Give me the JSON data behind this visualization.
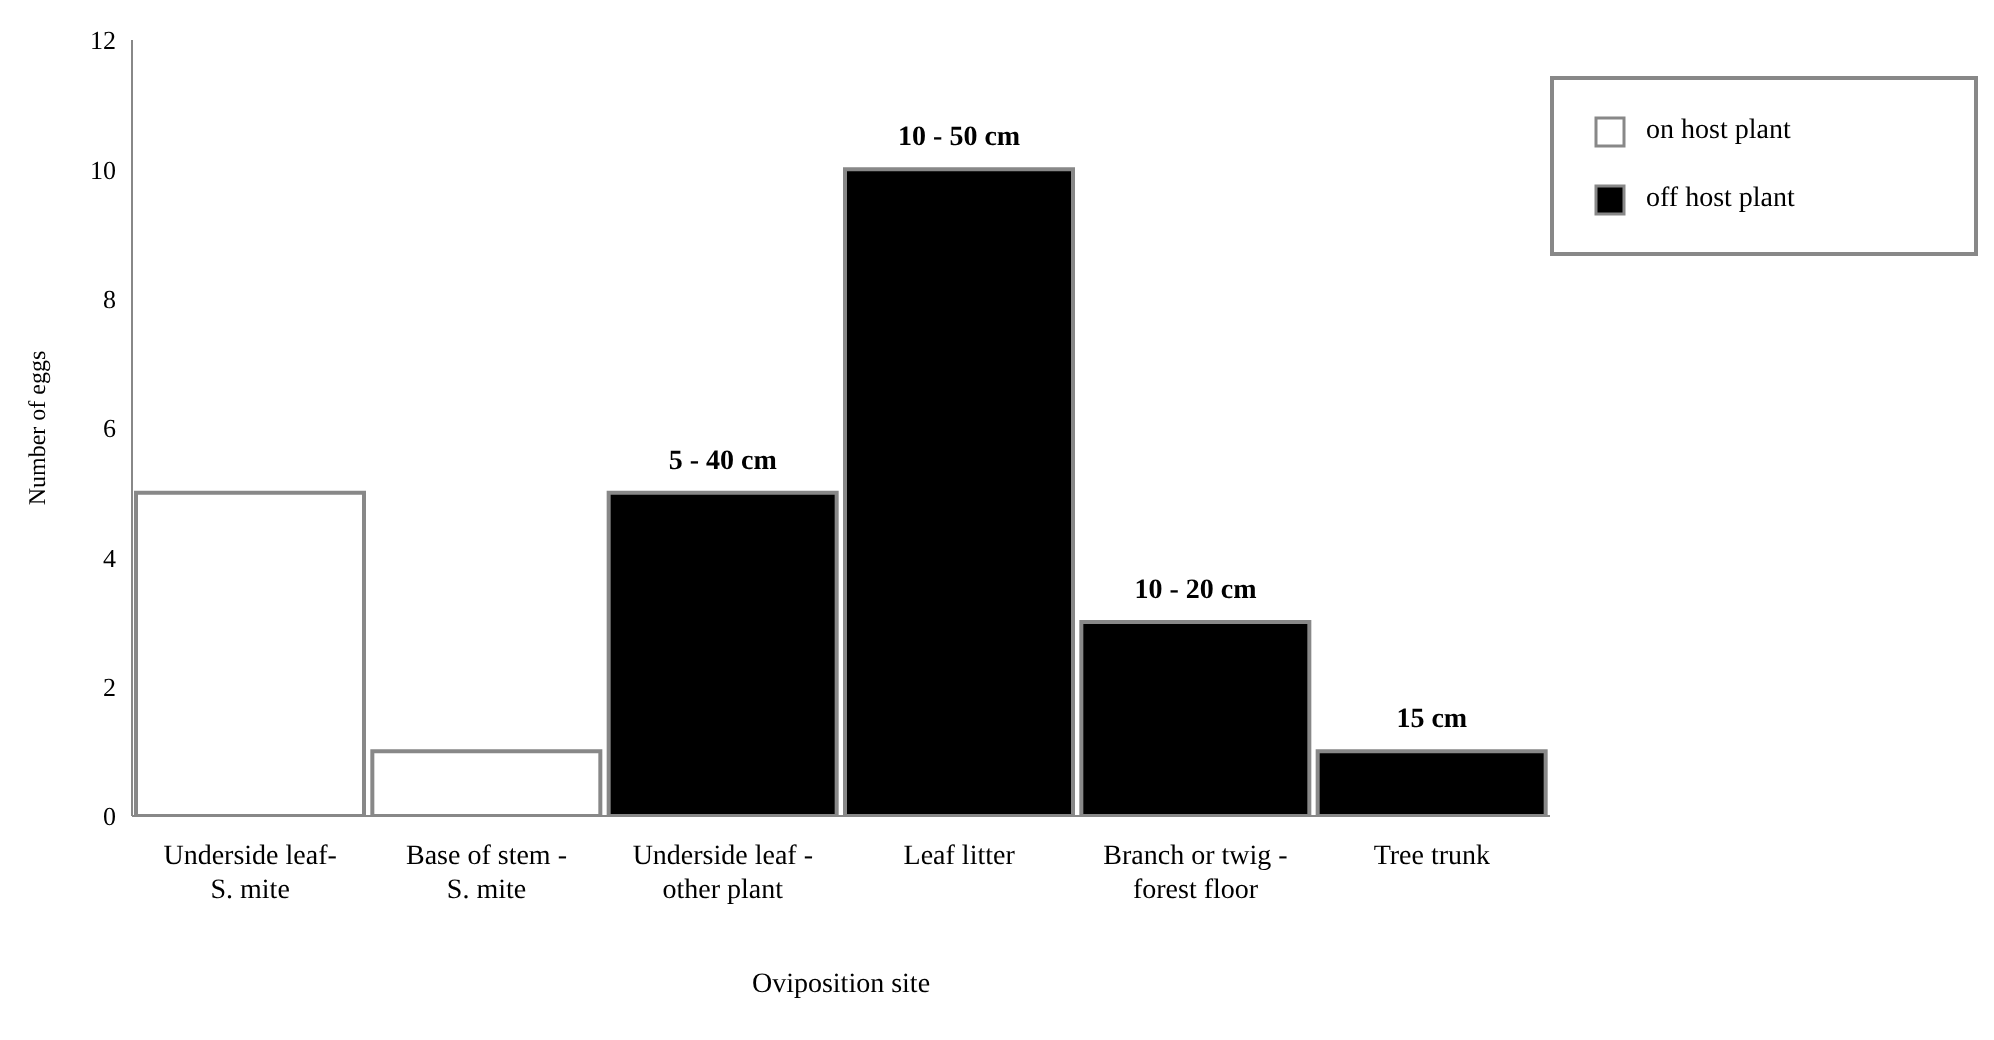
{
  "chart_data": {
    "type": "bar",
    "stacked": true,
    "categories": [
      "Underside leaf-\nS. mite",
      "Base of stem -\nS. mite",
      "Underside leaf -\nother plant",
      "Leaf litter",
      "Branch or twig -\nforest floor",
      "Tree trunk"
    ],
    "series": [
      {
        "name": "on host plant",
        "color": "#ffffff",
        "values": [
          5,
          1,
          null,
          null,
          null,
          null
        ]
      },
      {
        "name": "off host plant",
        "color": "#000000",
        "values": [
          null,
          null,
          5,
          10,
          3,
          1
        ]
      }
    ],
    "xlabel": "Oviposition site",
    "ylabel": "Number of eggs",
    "ylim": [
      0,
      12
    ],
    "yticks": [
      0,
      2,
      4,
      6,
      8,
      10,
      12
    ],
    "grid": false,
    "legend": "top right",
    "annotations": [
      {
        "text": "5 - 40 cm",
        "x": "Underside leaf -\nother plant",
        "y": 5
      },
      {
        "text": "10 - 50 cm",
        "x": "Leaf litter",
        "y": 10
      },
      {
        "text": "10 - 20 cm",
        "x": "Branch or twig -\nforest floor",
        "y": 3
      },
      {
        "text": "15 cm",
        "x": "Tree trunk",
        "y": 1
      }
    ]
  }
}
